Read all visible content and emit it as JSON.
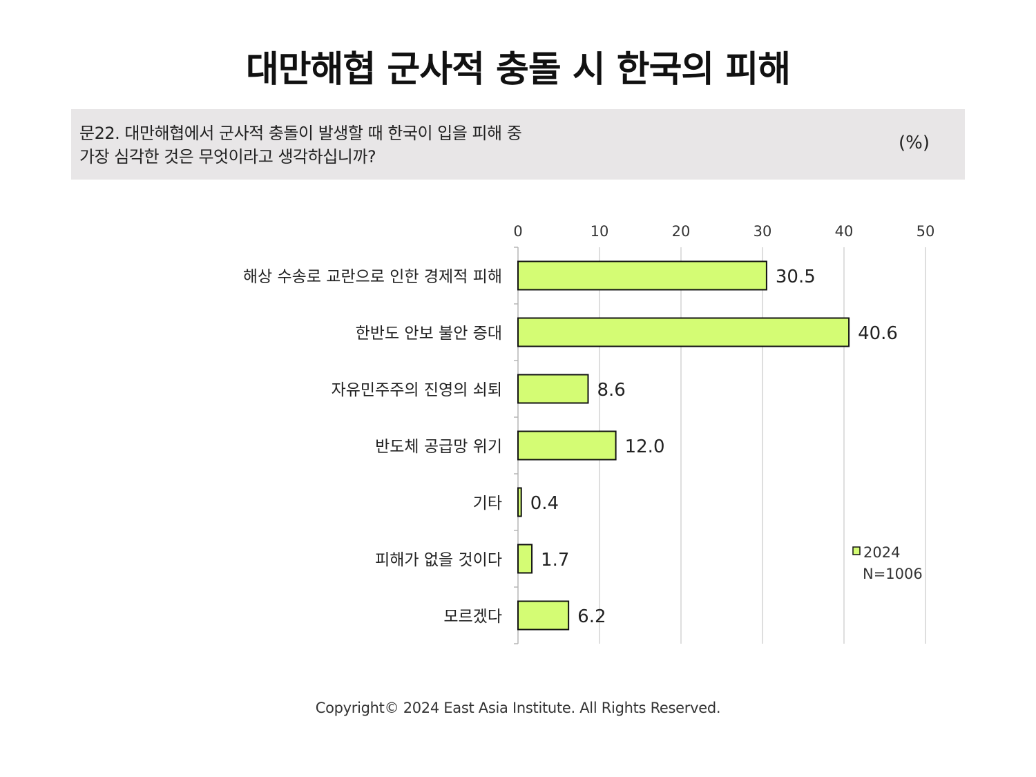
{
  "title": "대만해협 군사적 충돌 시 한국의 피해",
  "question": {
    "line1": "문22. 대만해협에서 군사적 충돌이 발생할 때 한국이 입을 피해 중",
    "line2": "가장 심각한 것은 무엇이라고 생각하십니까?",
    "unit": "(%)"
  },
  "chart_data": {
    "type": "bar",
    "orientation": "horizontal",
    "categories": [
      "해상 수송로 교란으로 인한 경제적 피해",
      "한반도 안보 불안 증대",
      "자유민주주의 진영의 쇠퇴",
      "반도체 공급망 위기",
      "기타",
      "피해가 없을 것이다",
      "모르겠다"
    ],
    "series": [
      {
        "name": "2024",
        "values": [
          30.5,
          40.6,
          8.6,
          12.0,
          0.4,
          1.7,
          6.2
        ],
        "value_labels": [
          "30.5",
          "40.6",
          "8.6",
          "12.0",
          "0.4",
          "1.7",
          "6.2"
        ],
        "color": "#d4fc74"
      }
    ],
    "xlim": [
      0,
      50
    ],
    "xticks": [
      0,
      10,
      20,
      30,
      40,
      50
    ],
    "grid": true,
    "legend": {
      "position": "right",
      "entries": [
        "2024"
      ],
      "note": "N=1006"
    }
  },
  "colors": {
    "bar_fill": "#d4fc74",
    "bar_stroke": "#111111",
    "grid": "#d4d4d4",
    "axis": "#b5b5b5",
    "question_bg": "#e8e6e7"
  },
  "footer": {
    "copyright": "Copyright© 2024 East Asia Institute. All Rights Reserved."
  }
}
